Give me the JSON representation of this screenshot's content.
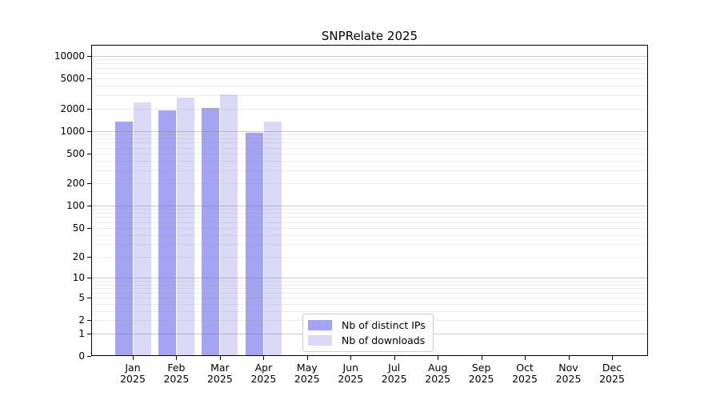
{
  "figure": {
    "background": "#ffffff"
  },
  "chart_data": {
    "type": "bar",
    "title": "SNPRelate 2025",
    "categories": [
      "Jan",
      "Feb",
      "Mar",
      "Apr",
      "May",
      "Jun",
      "Jul",
      "Aug",
      "Sep",
      "Oct",
      "Nov",
      "Dec"
    ],
    "year_label": "2025",
    "xlabel": "",
    "ylabel": "",
    "y_scale": "log10(value+1)",
    "ylim": [
      0,
      10000
    ],
    "y_ticks": [
      0,
      1,
      2,
      5,
      10,
      20,
      50,
      100,
      200,
      500,
      1000,
      2000,
      5000,
      10000
    ],
    "grid": "minor lines at 2-9 of each decade, darker lines at powers of 10, drawn over bars",
    "legend_position": "inside-bottom-center",
    "series": [
      {
        "name": "Nb of distinct IPs",
        "color": "#a4a4f2",
        "values": [
          1330,
          1880,
          2030,
          950,
          null,
          null,
          null,
          null,
          null,
          null,
          null,
          null
        ]
      },
      {
        "name": "Nb of downloads",
        "color": "#dadaf8",
        "values": [
          2400,
          2790,
          3080,
          1330,
          null,
          null,
          null,
          null,
          null,
          null,
          null,
          null
        ]
      }
    ]
  }
}
